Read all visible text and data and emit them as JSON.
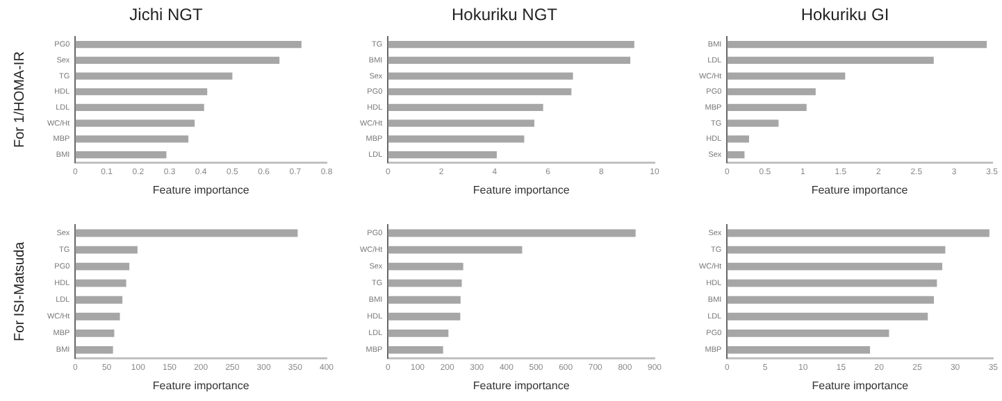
{
  "chart_data": [
    {
      "type": "bar",
      "orientation": "horizontal",
      "title": "Jichi NGT",
      "ylabel": "For 1/HOMA-IR",
      "xlabel": "Feature importance",
      "color": "#a6a6a6",
      "grid": false,
      "categories": [
        "PG0",
        "Sex",
        "TG",
        "HDL",
        "LDL",
        "WC/Ht",
        "MBP",
        "BMI"
      ],
      "values": [
        0.72,
        0.65,
        0.5,
        0.42,
        0.41,
        0.38,
        0.36,
        0.29
      ],
      "xlim": [
        0,
        0.8
      ],
      "xticks": [
        0,
        0.1,
        0.2,
        0.3,
        0.4,
        0.5,
        0.6,
        0.7,
        0.8
      ]
    },
    {
      "type": "bar",
      "orientation": "horizontal",
      "title": "Hokuriku NGT",
      "xlabel": "Feature importance",
      "color": "#a6a6a6",
      "grid": false,
      "categories": [
        "TG",
        "BMI",
        "Sex",
        "PG0",
        "HDL",
        "WC/Ht",
        "MBP",
        "LDL"
      ],
      "values": [
        9.24,
        9.09,
        6.94,
        6.88,
        5.82,
        5.49,
        5.11,
        4.08
      ],
      "xlim": [
        0,
        10
      ],
      "xticks": [
        0,
        2,
        4,
        6,
        8,
        10
      ]
    },
    {
      "type": "bar",
      "orientation": "horizontal",
      "title": "Hokuriku GI",
      "xlabel": "Feature importance",
      "color": "#a6a6a6",
      "grid": false,
      "categories": [
        "BMI",
        "LDL",
        "WC/Ht",
        "PG0",
        "MBP",
        "TG",
        "HDL",
        "Sex"
      ],
      "values": [
        3.43,
        2.73,
        1.56,
        1.17,
        1.05,
        0.68,
        0.29,
        0.23
      ],
      "xlim": [
        0,
        3.5
      ],
      "xticks": [
        0,
        0.5,
        1,
        1.5,
        2,
        2.5,
        3,
        3.5
      ]
    },
    {
      "type": "bar",
      "orientation": "horizontal",
      "ylabel": "For ISI-Matsuda",
      "xlabel": "Feature importance",
      "color": "#a6a6a6",
      "grid": false,
      "categories": [
        "Sex",
        "TG",
        "PG0",
        "HDL",
        "LDL",
        "WC/Ht",
        "MBP",
        "BMI"
      ],
      "values": [
        354,
        99,
        86,
        81,
        75,
        71,
        62,
        60
      ],
      "xlim": [
        0,
        400
      ],
      "xticks": [
        0,
        50,
        100,
        150,
        200,
        250,
        300,
        350,
        400
      ]
    },
    {
      "type": "bar",
      "orientation": "horizontal",
      "xlabel": "Feature importance",
      "color": "#a6a6a6",
      "grid": false,
      "categories": [
        "PG0",
        "WC/Ht",
        "Sex",
        "TG",
        "BMI",
        "HDL",
        "LDL",
        "MBP"
      ],
      "values": [
        836,
        453,
        254,
        249,
        245,
        244,
        204,
        186
      ],
      "xlim": [
        0,
        900
      ],
      "xticks": [
        0,
        100,
        200,
        300,
        400,
        500,
        600,
        700,
        800,
        900
      ]
    },
    {
      "type": "bar",
      "orientation": "horizontal",
      "xlabel": "Feature importance",
      "color": "#a6a6a6",
      "grid": false,
      "categories": [
        "Sex",
        "TG",
        "WC/Ht",
        "HDL",
        "BMI",
        "LDL",
        "PG0",
        "MBP"
      ],
      "values": [
        34.5,
        28.7,
        28.3,
        27.6,
        27.2,
        26.4,
        21.3,
        18.8
      ],
      "xlim": [
        0,
        35
      ],
      "xticks": [
        0,
        5,
        10,
        15,
        20,
        25,
        30,
        35
      ]
    }
  ]
}
